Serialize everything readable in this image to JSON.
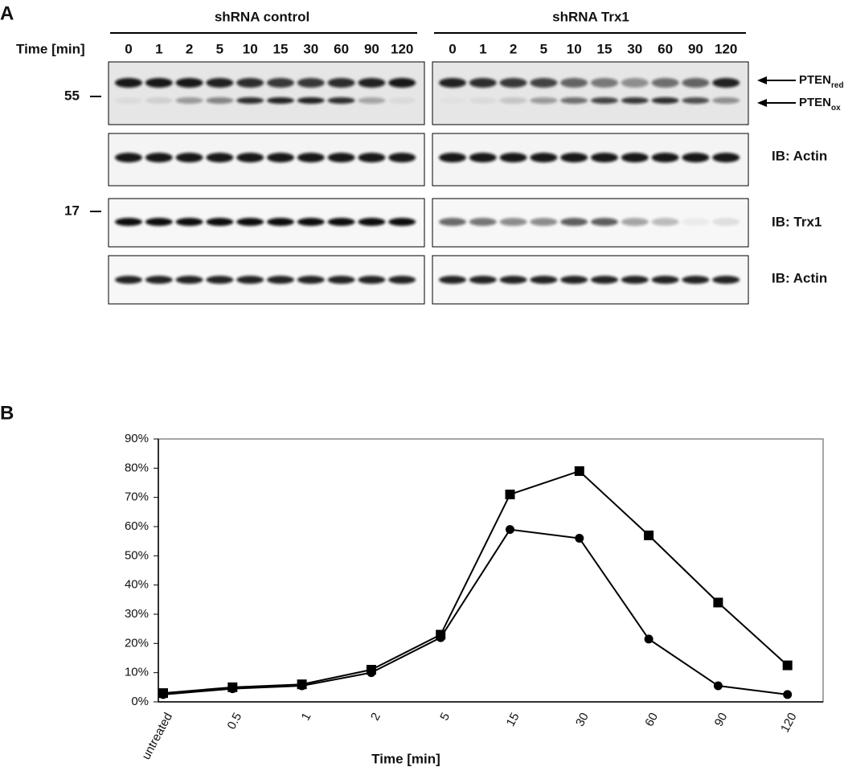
{
  "panel_a": {
    "label": "A",
    "time_label": "Time [min]",
    "groups": [
      {
        "title": "shRNA control",
        "lanes": [
          0,
          1,
          2,
          5,
          10,
          15,
          30,
          60,
          90,
          120
        ]
      },
      {
        "title": "shRNA Trx1",
        "lanes": [
          0,
          1,
          2,
          5,
          10,
          15,
          30,
          60,
          90,
          120
        ]
      }
    ],
    "markers": [
      "55",
      "17"
    ],
    "pten_labels": [
      {
        "main": "PTEN",
        "sub": "red"
      },
      {
        "main": "PTEN",
        "sub": "ox"
      }
    ],
    "blot_labels": [
      "IB: Actin",
      "IB: Trx1",
      "IB: Actin"
    ]
  },
  "panel_b_label": "B",
  "chart_data": {
    "type": "line",
    "xlabel": "Time [min]",
    "categories": [
      "untreated",
      "0.5",
      "1",
      "2",
      "5",
      "15",
      "30",
      "60",
      "90",
      "120"
    ],
    "series": [
      {
        "color": "#000000",
        "marker": "square",
        "values": [
          3,
          5,
          6,
          11,
          23,
          71,
          79,
          57,
          34,
          12.5
        ]
      },
      {
        "color": "#000000",
        "marker": "circle",
        "values": [
          2.5,
          4.5,
          5.5,
          10,
          22,
          59,
          56,
          21.5,
          5.5,
          2.5
        ]
      }
    ],
    "ylim": [
      0,
      90
    ],
    "yticks": [
      {
        "value": 0,
        "label": "0%"
      },
      {
        "value": 10,
        "label": "10%"
      },
      {
        "value": 20,
        "label": "20%"
      },
      {
        "value": 30,
        "label": "30%"
      },
      {
        "value": 40,
        "label": "40%"
      },
      {
        "value": 50,
        "label": "50%"
      },
      {
        "value": 60,
        "label": "60%"
      },
      {
        "value": 70,
        "label": "70%"
      },
      {
        "value": 80,
        "label": "80%"
      },
      {
        "value": 90,
        "label": "90%"
      }
    ]
  }
}
